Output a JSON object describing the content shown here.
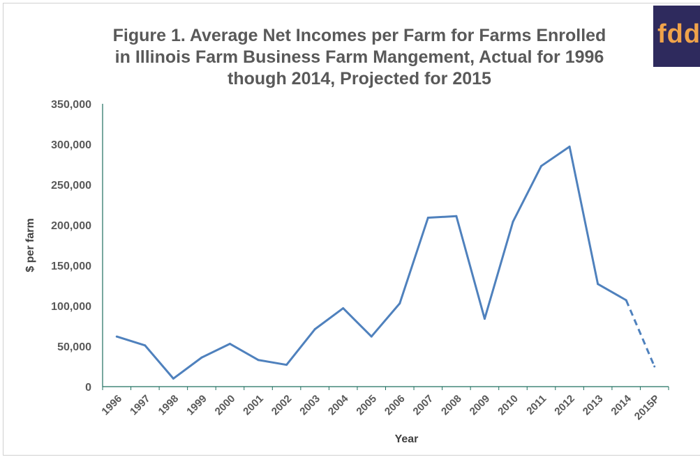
{
  "logo": {
    "text": "fdd",
    "background": "#2e2a5d",
    "color": "#f0a34a"
  },
  "chart_data": {
    "type": "line",
    "title_lines": [
      "Figure 1.  Average Net Incomes per Farm for Farms Enrolled",
      "in Illinois Farm Business Farm Mangement, Actual for 1996",
      "though 2014, Projected for 2015"
    ],
    "xlabel": "Year",
    "ylabel": "$ per farm",
    "categories": [
      "1996",
      "1997",
      "1998",
      "1999",
      "2000",
      "2001",
      "2002",
      "2003",
      "2004",
      "2005",
      "2006",
      "2007",
      "2008",
      "2009",
      "2010",
      "2011",
      "2012",
      "2013",
      "2014",
      "2015P"
    ],
    "series": [
      {
        "values": [
          62000,
          51000,
          10000,
          36000,
          53000,
          33000,
          27000,
          71000,
          97000,
          62000,
          103000,
          209000,
          211000,
          84000,
          204000,
          273000,
          297000,
          127000,
          107000,
          25000
        ],
        "projected_from_index": 18,
        "color": "#4f81bd"
      }
    ],
    "ylim": [
      0,
      350000
    ],
    "yticks": [
      0,
      50000,
      100000,
      150000,
      200000,
      250000,
      300000,
      350000
    ],
    "ytick_labels": [
      "0",
      "50,000",
      "100,000",
      "150,000",
      "200,000",
      "250,000",
      "300,000",
      "350,000"
    ],
    "grid": false,
    "legend": "none",
    "axis_color": "#1f6f5f",
    "tick_color": "#595959"
  }
}
